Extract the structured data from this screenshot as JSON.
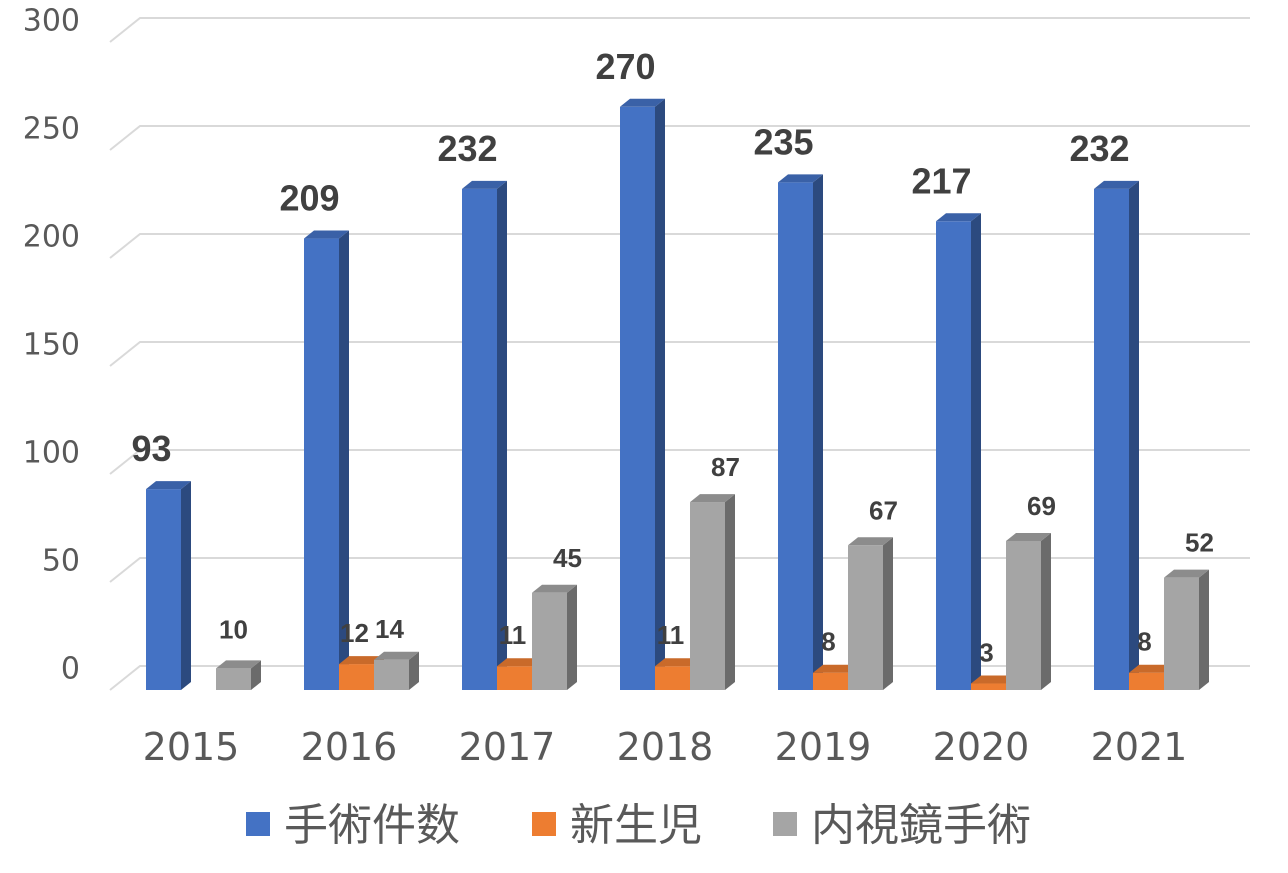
{
  "chart_data": {
    "type": "bar",
    "style": "3d-clustered-column",
    "categories": [
      "2015",
      "2016",
      "2017",
      "2018",
      "2019",
      "2020",
      "2021"
    ],
    "series": [
      {
        "name": "手術件数",
        "color": "#4472C4",
        "values": [
          93,
          209,
          232,
          270,
          235,
          217,
          232
        ]
      },
      {
        "name": "新生児",
        "color": "#ED7D31",
        "values": [
          null,
          12,
          11,
          11,
          8,
          3,
          8
        ]
      },
      {
        "name": "内視鏡手術",
        "color": "#A5A5A5",
        "values": [
          10,
          14,
          45,
          87,
          67,
          69,
          52
        ]
      }
    ],
    "ylim": [
      0,
      300
    ],
    "yticks": [
      "0",
      "50",
      "100",
      "150",
      "200",
      "250",
      "300"
    ],
    "grid": true,
    "legend_position": "bottom",
    "data_labels": true
  }
}
